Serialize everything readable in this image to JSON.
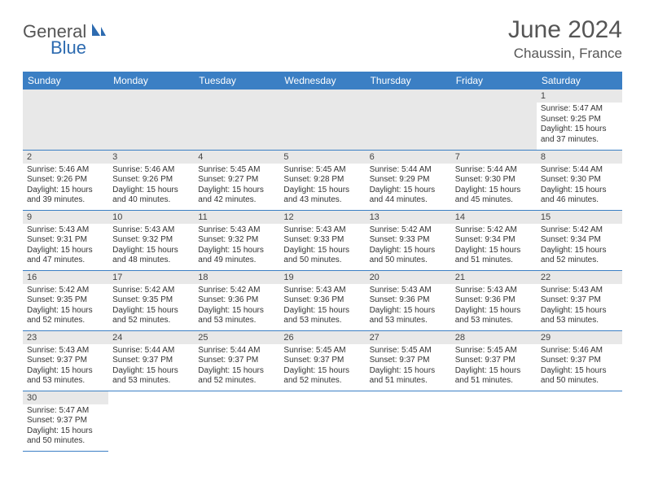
{
  "logo": {
    "text1": "General",
    "text2": "Blue"
  },
  "title": "June 2024",
  "location": "Chaussin, France",
  "headers": [
    "Sunday",
    "Monday",
    "Tuesday",
    "Wednesday",
    "Thursday",
    "Friday",
    "Saturday"
  ],
  "colors": {
    "header_bg": "#3b7fc4",
    "header_text": "#ffffff",
    "daynum_bg": "#e8e8e8",
    "border": "#3b7fc4",
    "logo_blue": "#2d6bb0"
  },
  "weeks": [
    [
      null,
      null,
      null,
      null,
      null,
      null,
      {
        "n": "1",
        "sr": "5:47 AM",
        "ss": "9:25 PM",
        "dl": "15 hours and 37 minutes."
      }
    ],
    [
      {
        "n": "2",
        "sr": "5:46 AM",
        "ss": "9:26 PM",
        "dl": "15 hours and 39 minutes."
      },
      {
        "n": "3",
        "sr": "5:46 AM",
        "ss": "9:26 PM",
        "dl": "15 hours and 40 minutes."
      },
      {
        "n": "4",
        "sr": "5:45 AM",
        "ss": "9:27 PM",
        "dl": "15 hours and 42 minutes."
      },
      {
        "n": "5",
        "sr": "5:45 AM",
        "ss": "9:28 PM",
        "dl": "15 hours and 43 minutes."
      },
      {
        "n": "6",
        "sr": "5:44 AM",
        "ss": "9:29 PM",
        "dl": "15 hours and 44 minutes."
      },
      {
        "n": "7",
        "sr": "5:44 AM",
        "ss": "9:30 PM",
        "dl": "15 hours and 45 minutes."
      },
      {
        "n": "8",
        "sr": "5:44 AM",
        "ss": "9:30 PM",
        "dl": "15 hours and 46 minutes."
      }
    ],
    [
      {
        "n": "9",
        "sr": "5:43 AM",
        "ss": "9:31 PM",
        "dl": "15 hours and 47 minutes."
      },
      {
        "n": "10",
        "sr": "5:43 AM",
        "ss": "9:32 PM",
        "dl": "15 hours and 48 minutes."
      },
      {
        "n": "11",
        "sr": "5:43 AM",
        "ss": "9:32 PM",
        "dl": "15 hours and 49 minutes."
      },
      {
        "n": "12",
        "sr": "5:43 AM",
        "ss": "9:33 PM",
        "dl": "15 hours and 50 minutes."
      },
      {
        "n": "13",
        "sr": "5:42 AM",
        "ss": "9:33 PM",
        "dl": "15 hours and 50 minutes."
      },
      {
        "n": "14",
        "sr": "5:42 AM",
        "ss": "9:34 PM",
        "dl": "15 hours and 51 minutes."
      },
      {
        "n": "15",
        "sr": "5:42 AM",
        "ss": "9:34 PM",
        "dl": "15 hours and 52 minutes."
      }
    ],
    [
      {
        "n": "16",
        "sr": "5:42 AM",
        "ss": "9:35 PM",
        "dl": "15 hours and 52 minutes."
      },
      {
        "n": "17",
        "sr": "5:42 AM",
        "ss": "9:35 PM",
        "dl": "15 hours and 52 minutes."
      },
      {
        "n": "18",
        "sr": "5:42 AM",
        "ss": "9:36 PM",
        "dl": "15 hours and 53 minutes."
      },
      {
        "n": "19",
        "sr": "5:43 AM",
        "ss": "9:36 PM",
        "dl": "15 hours and 53 minutes."
      },
      {
        "n": "20",
        "sr": "5:43 AM",
        "ss": "9:36 PM",
        "dl": "15 hours and 53 minutes."
      },
      {
        "n": "21",
        "sr": "5:43 AM",
        "ss": "9:36 PM",
        "dl": "15 hours and 53 minutes."
      },
      {
        "n": "22",
        "sr": "5:43 AM",
        "ss": "9:37 PM",
        "dl": "15 hours and 53 minutes."
      }
    ],
    [
      {
        "n": "23",
        "sr": "5:43 AM",
        "ss": "9:37 PM",
        "dl": "15 hours and 53 minutes."
      },
      {
        "n": "24",
        "sr": "5:44 AM",
        "ss": "9:37 PM",
        "dl": "15 hours and 53 minutes."
      },
      {
        "n": "25",
        "sr": "5:44 AM",
        "ss": "9:37 PM",
        "dl": "15 hours and 52 minutes."
      },
      {
        "n": "26",
        "sr": "5:45 AM",
        "ss": "9:37 PM",
        "dl": "15 hours and 52 minutes."
      },
      {
        "n": "27",
        "sr": "5:45 AM",
        "ss": "9:37 PM",
        "dl": "15 hours and 51 minutes."
      },
      {
        "n": "28",
        "sr": "5:45 AM",
        "ss": "9:37 PM",
        "dl": "15 hours and 51 minutes."
      },
      {
        "n": "29",
        "sr": "5:46 AM",
        "ss": "9:37 PM",
        "dl": "15 hours and 50 minutes."
      }
    ],
    [
      {
        "n": "30",
        "sr": "5:47 AM",
        "ss": "9:37 PM",
        "dl": "15 hours and 50 minutes."
      },
      null,
      null,
      null,
      null,
      null,
      null
    ]
  ],
  "labels": {
    "sunrise": "Sunrise:",
    "sunset": "Sunset:",
    "daylight": "Daylight:"
  }
}
